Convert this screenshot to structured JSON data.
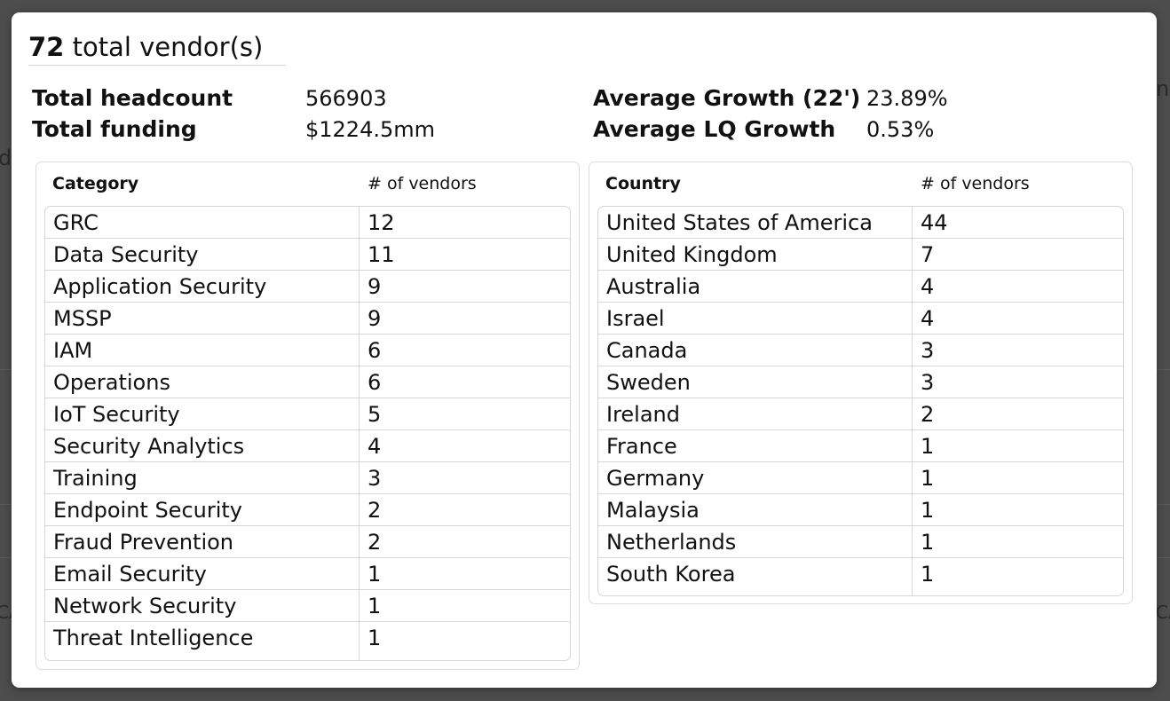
{
  "summary": {
    "total_count": "72",
    "title_suffix": "total vendor(s)",
    "total_headcount_label": "Total headcount",
    "total_headcount_value": "566903",
    "total_funding_label": "Total funding",
    "total_funding_value": "$1224.5mm",
    "avg_growth_label": "Average Growth (22')",
    "avg_growth_value": "23.89%",
    "avg_lq_growth_label": "Average LQ Growth",
    "avg_lq_growth_value": "0.53%"
  },
  "category_table": {
    "header_name": "Category",
    "header_count": "# of vendors",
    "rows": [
      {
        "name": "GRC",
        "count": "12"
      },
      {
        "name": "Data Security",
        "count": "11"
      },
      {
        "name": "Application Security",
        "count": "9"
      },
      {
        "name": "MSSP",
        "count": "9"
      },
      {
        "name": "IAM",
        "count": "6"
      },
      {
        "name": "Operations",
        "count": "6"
      },
      {
        "name": "IoT Security",
        "count": "5"
      },
      {
        "name": "Security Analytics",
        "count": "4"
      },
      {
        "name": "Training",
        "count": "3"
      },
      {
        "name": "Endpoint Security",
        "count": "2"
      },
      {
        "name": "Fraud Prevention",
        "count": "2"
      },
      {
        "name": "Email Security",
        "count": "1"
      },
      {
        "name": "Network Security",
        "count": "1"
      },
      {
        "name": "Threat Intelligence",
        "count": "1"
      }
    ]
  },
  "country_table": {
    "header_name": "Country",
    "header_count": "# of vendors",
    "rows": [
      {
        "name": "United States of America",
        "count": "44"
      },
      {
        "name": "United Kingdom",
        "count": "7"
      },
      {
        "name": "Australia",
        "count": "4"
      },
      {
        "name": "Israel",
        "count": "4"
      },
      {
        "name": "Canada",
        "count": "3"
      },
      {
        "name": "Sweden",
        "count": "3"
      },
      {
        "name": "Ireland",
        "count": "2"
      },
      {
        "name": "France",
        "count": "1"
      },
      {
        "name": "Germany",
        "count": "1"
      },
      {
        "name": "Malaysia",
        "count": "1"
      },
      {
        "name": "Netherlands",
        "count": "1"
      },
      {
        "name": "South Korea",
        "count": "1"
      }
    ]
  },
  "background_fragments": {
    "right_top": "ns",
    "left_mid": "d",
    "left_low": "CA",
    "right_low": "CA"
  }
}
